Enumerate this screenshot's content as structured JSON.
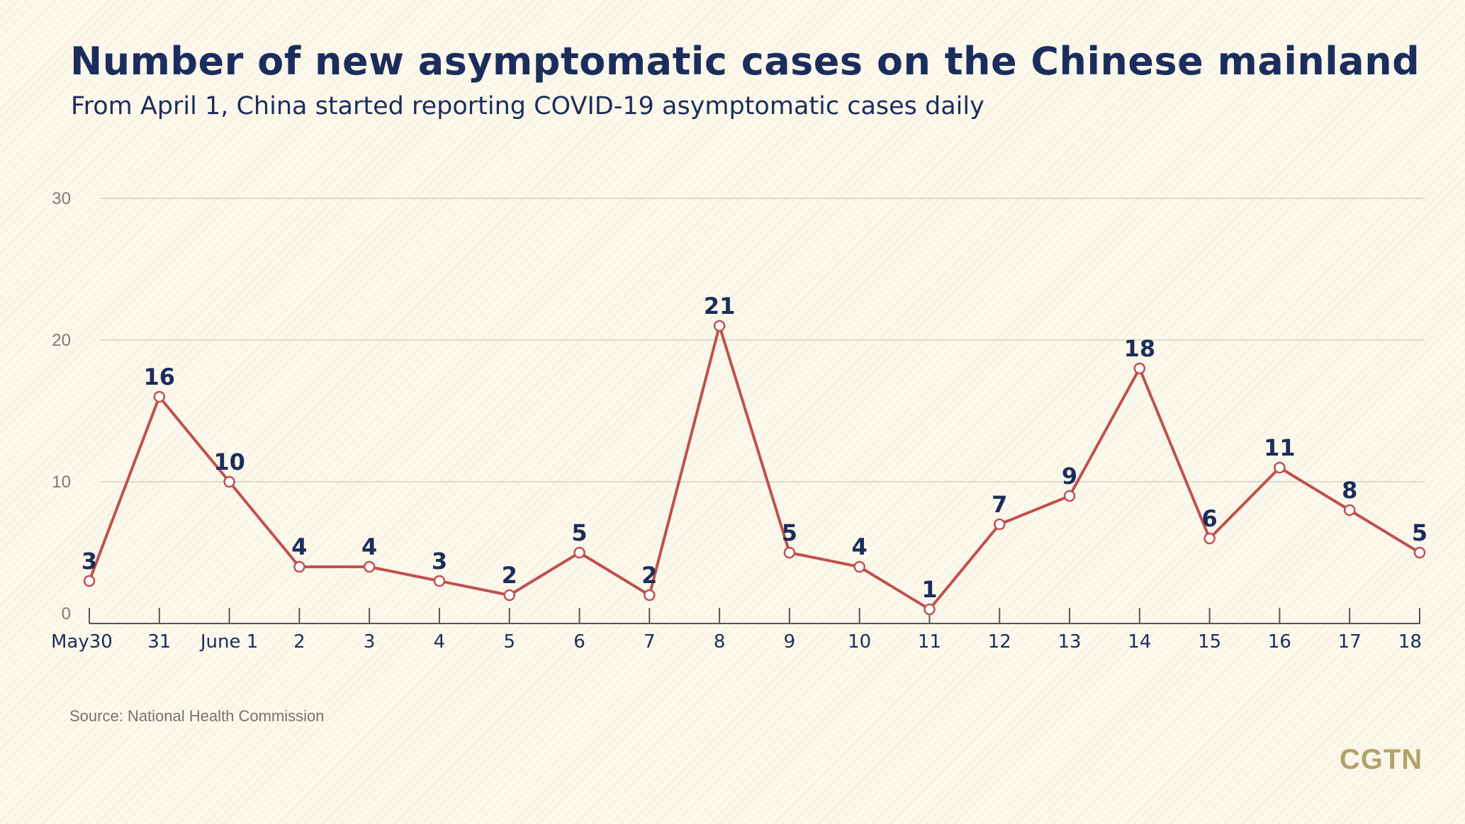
{
  "title": "Number of new asymptomatic cases on the Chinese mainland",
  "subtitle": "From April 1, China started reporting COVID-19 asymptomatic cases daily",
  "source": "Source: National Health Commission",
  "logo": "CGTN",
  "colors": {
    "line": "#c0504d",
    "title": "#1b2d5c",
    "grid": "#d4d1c7",
    "background": "#fcf8ec",
    "logo": "#b3a26b"
  },
  "chart_data": {
    "type": "line",
    "x": [
      "May30",
      "31",
      "June 1",
      "2",
      "3",
      "4",
      "5",
      "6",
      "7",
      "8",
      "9",
      "10",
      "11",
      "12",
      "13",
      "14",
      "15",
      "16",
      "17",
      "18"
    ],
    "values": [
      3,
      16,
      10,
      4,
      4,
      3,
      2,
      5,
      2,
      21,
      5,
      4,
      1,
      7,
      9,
      18,
      6,
      11,
      8,
      5
    ],
    "yticks": [
      0,
      10,
      20,
      30
    ],
    "ylim": [
      0,
      30
    ],
    "grid": true,
    "legend": "none"
  }
}
